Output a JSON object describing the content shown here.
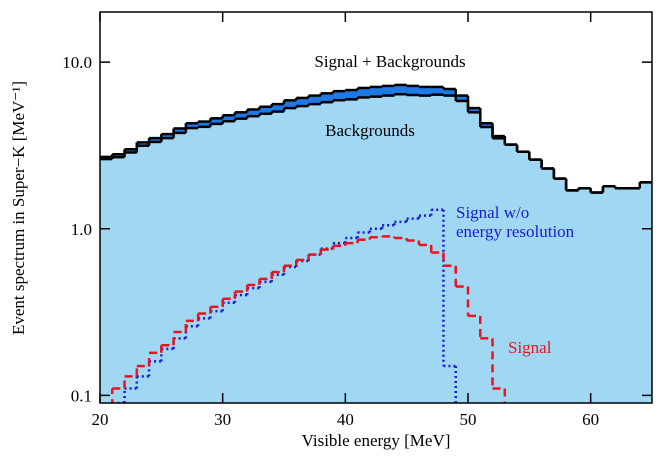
{
  "chart_data": {
    "type": "step-histogram",
    "xlabel": "Visible energy [MeV]",
    "ylabel": "Event spectrum in Super−K [MeV⁻¹]",
    "bins": [
      20,
      21,
      22,
      23,
      24,
      25,
      26,
      27,
      28,
      29,
      30,
      31,
      32,
      33,
      34,
      35,
      36,
      37,
      38,
      39,
      40,
      41,
      42,
      43,
      44,
      45,
      46,
      47,
      48,
      49,
      50,
      51,
      52,
      53,
      54,
      55,
      56,
      57,
      58,
      59,
      60,
      61,
      62,
      63,
      64,
      65
    ],
    "xlim": [
      20,
      65
    ],
    "xticks": [
      20,
      30,
      40,
      50,
      60
    ],
    "ylim": [
      0.09,
      20
    ],
    "log_y": true,
    "yticks": [
      {
        "value": 0.1,
        "label": "0.1"
      },
      {
        "value": 1,
        "label": "1.0"
      },
      {
        "value": 10,
        "label": "10.0"
      }
    ],
    "series": [
      {
        "name": "Signal + Backgrounds",
        "color": "#1e78e6",
        "style": "solid",
        "values": [
          2.7,
          2.8,
          3.0,
          3.3,
          3.5,
          3.7,
          4.0,
          4.3,
          4.4,
          4.6,
          4.8,
          5.0,
          5.2,
          5.4,
          5.6,
          5.9,
          6.1,
          6.3,
          6.5,
          6.7,
          6.8,
          7.0,
          7.1,
          7.2,
          7.3,
          7.2,
          7.1,
          7.1,
          6.9,
          6.3,
          5.3,
          4.3,
          3.6,
          3.2,
          2.9,
          2.6,
          2.3,
          2.0,
          1.7,
          1.75,
          1.65,
          1.8,
          1.75,
          1.75,
          1.9
        ]
      },
      {
        "name": "Backgrounds",
        "color": "#a0d8f4",
        "style": "solid",
        "values": [
          2.62,
          2.69,
          2.87,
          3.15,
          3.32,
          3.5,
          3.76,
          4.02,
          4.09,
          4.26,
          4.42,
          4.58,
          4.74,
          4.9,
          5.05,
          5.3,
          5.45,
          5.6,
          5.75,
          5.91,
          5.98,
          6.14,
          6.21,
          6.3,
          6.42,
          6.35,
          6.3,
          6.38,
          6.3,
          5.85,
          5.0,
          4.08,
          3.49,
          3.2,
          2.9,
          2.6,
          2.3,
          2.0,
          1.7,
          1.75,
          1.65,
          1.8,
          1.75,
          1.75,
          1.9
        ]
      },
      {
        "name": "Signal w/o\nenergy resolution",
        "color": "#1a1ad6",
        "style": "dotted",
        "values": [
          null,
          0.09,
          0.11,
          0.13,
          0.16,
          0.19,
          0.22,
          0.26,
          0.29,
          0.32,
          0.36,
          0.4,
          0.44,
          0.48,
          0.53,
          0.59,
          0.64,
          0.7,
          0.76,
          0.82,
          0.88,
          0.95,
          1.0,
          1.05,
          1.1,
          1.15,
          1.2,
          1.3,
          0.15,
          0.05,
          null,
          null,
          null,
          null,
          null,
          null,
          null,
          null,
          null,
          null,
          null,
          null,
          null,
          null,
          null
        ]
      },
      {
        "name": "Signal",
        "color": "#e8141e",
        "style": "dashed",
        "values": [
          0.085,
          0.11,
          0.13,
          0.15,
          0.18,
          0.2,
          0.24,
          0.28,
          0.31,
          0.34,
          0.38,
          0.42,
          0.46,
          0.5,
          0.55,
          0.6,
          0.65,
          0.7,
          0.75,
          0.79,
          0.82,
          0.86,
          0.89,
          0.9,
          0.88,
          0.85,
          0.8,
          0.72,
          0.6,
          0.45,
          0.3,
          0.22,
          0.11,
          null,
          null,
          null,
          null,
          null,
          null,
          null,
          null,
          null,
          null,
          null,
          null
        ]
      }
    ]
  }
}
